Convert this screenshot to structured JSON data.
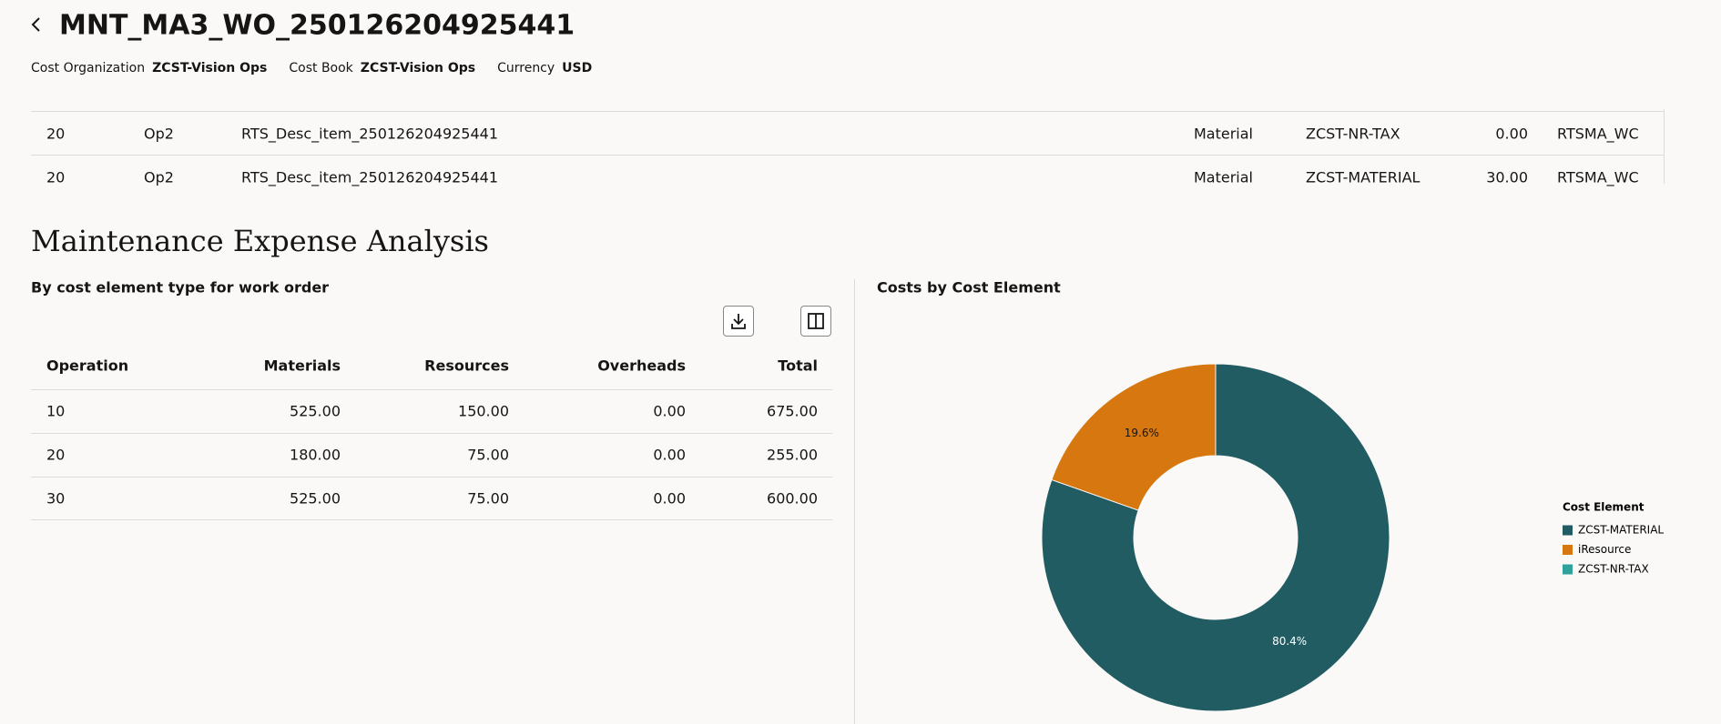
{
  "header": {
    "title": "MNT_MA3_WO_250126204925441",
    "fields": [
      {
        "label": "Cost Organization",
        "value": "ZCST-Vision Ops"
      },
      {
        "label": "Cost Book",
        "value": "ZCST-Vision Ops"
      },
      {
        "label": "Currency",
        "value": "USD"
      }
    ]
  },
  "detail_table": {
    "rows": [
      [
        "20",
        "Op2",
        "RTS_Desc_item_250126204925441",
        "Material",
        "ZCST-NR-TAX",
        "0.00",
        "RTSMA_WC"
      ],
      [
        "20",
        "Op2",
        "RTS_Desc_item_250126204925441",
        "Material",
        "ZCST-MATERIAL",
        "30.00",
        "RTSMA_WC"
      ]
    ]
  },
  "section_title": "Maintenance Expense Analysis",
  "cost_table": {
    "title": "By cost element type for work order",
    "columns": [
      "Operation",
      "Materials",
      "Resources",
      "Overheads",
      "Total"
    ],
    "rows": [
      [
        "10",
        "525.00",
        "150.00",
        "0.00",
        "675.00"
      ],
      [
        "20",
        "180.00",
        "75.00",
        "0.00",
        "255.00"
      ],
      [
        "30",
        "525.00",
        "75.00",
        "0.00",
        "600.00"
      ]
    ]
  },
  "chart_data": {
    "type": "pie",
    "donut": true,
    "title": "Costs by Cost Element",
    "legend_title": "Cost Element",
    "legend": "right",
    "categories": [
      "ZCST-MATERIAL",
      "iResource",
      "ZCST-NR-TAX"
    ],
    "values": [
      80.4,
      19.6,
      0
    ],
    "value_labels": [
      "80.4%",
      "19.6%",
      null
    ],
    "colors": [
      "#225c63",
      "#d6770f",
      "#2fa39b"
    ]
  }
}
